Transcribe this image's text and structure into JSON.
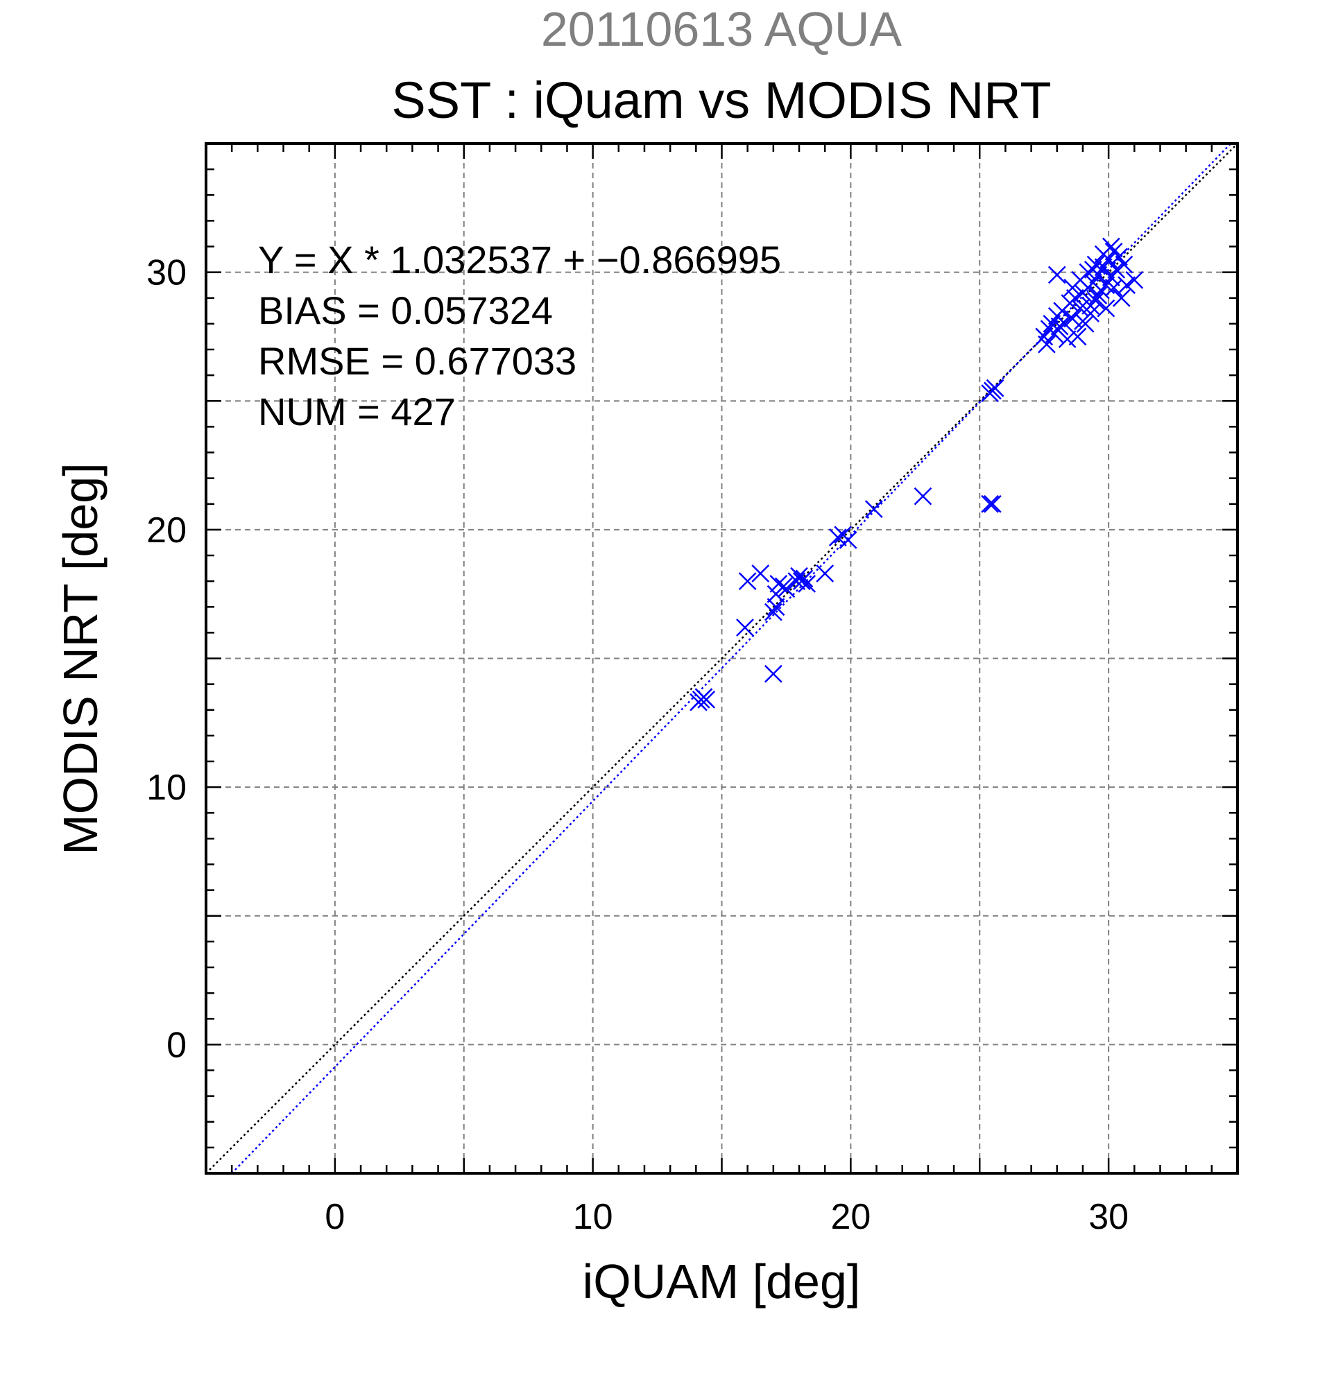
{
  "chart_data": {
    "type": "scatter",
    "title": "20110613 AQUA",
    "subtitle": "SST : iQuam vs MODIS NRT",
    "xlabel": "iQUAM [deg]",
    "ylabel": "MODIS NRT [deg]",
    "xlim": [
      -5,
      35
    ],
    "ylim": [
      -5,
      35
    ],
    "xticks": [
      0,
      10,
      20,
      30
    ],
    "yticks": [
      0,
      10,
      20,
      30
    ],
    "grid": true,
    "stats": [
      "Y = X * 1.032537 + −0.866995",
      "BIAS = 0.057324",
      "RMSE = 0.677033",
      "NUM = 427"
    ],
    "colors": {
      "points": "#0000ff",
      "identity_line": "#000000",
      "fit_line": "#0000ff"
    },
    "lines": [
      {
        "kind": "identity",
        "slope": 1,
        "intercept": 0,
        "style": "dotted"
      },
      {
        "kind": "regression",
        "slope": 1.032537,
        "intercept": -0.866995,
        "style": "dotted"
      }
    ],
    "points": [
      [
        14.2,
        13.4
      ],
      [
        14.4,
        13.4
      ],
      [
        14.3,
        13.5
      ],
      [
        14.1,
        13.3
      ],
      [
        15.9,
        16.2
      ],
      [
        16.0,
        18.0
      ],
      [
        16.5,
        18.3
      ],
      [
        17.0,
        14.4
      ],
      [
        17.0,
        16.8
      ],
      [
        17.1,
        17.0
      ],
      [
        17.1,
        17.5
      ],
      [
        17.2,
        17.9
      ],
      [
        17.4,
        17.8
      ],
      [
        17.5,
        17.7
      ],
      [
        17.9,
        18.0
      ],
      [
        18.0,
        18.2
      ],
      [
        18.1,
        18.0
      ],
      [
        18.2,
        18.1
      ],
      [
        18.3,
        17.9
      ],
      [
        19.0,
        18.3
      ],
      [
        19.5,
        19.7
      ],
      [
        19.7,
        19.8
      ],
      [
        19.9,
        19.6
      ],
      [
        20.9,
        20.8
      ],
      [
        22.8,
        21.3
      ],
      [
        25.4,
        21.0
      ],
      [
        25.5,
        21.0
      ],
      [
        25.5,
        25.4
      ],
      [
        25.6,
        25.5
      ],
      [
        25.4,
        25.3
      ],
      [
        27.5,
        27.5
      ],
      [
        27.6,
        27.2
      ],
      [
        27.7,
        27.8
      ],
      [
        27.8,
        28.0
      ],
      [
        27.9,
        27.6
      ],
      [
        28.0,
        28.3
      ],
      [
        28.1,
        27.9
      ],
      [
        28.2,
        28.5
      ],
      [
        28.3,
        28.0
      ],
      [
        28.4,
        27.4
      ],
      [
        28.5,
        28.8
      ],
      [
        28.6,
        28.2
      ],
      [
        28.7,
        29.0
      ],
      [
        28.8,
        27.5
      ],
      [
        28.9,
        28.6
      ],
      [
        29.0,
        29.2
      ],
      [
        29.1,
        28.0
      ],
      [
        29.2,
        29.4
      ],
      [
        29.3,
        28.4
      ],
      [
        29.4,
        29.6
      ],
      [
        29.5,
        28.9
      ],
      [
        29.6,
        29.9
      ],
      [
        29.7,
        29.3
      ],
      [
        29.8,
        30.2
      ],
      [
        29.9,
        29.5
      ],
      [
        30.0,
        30.5
      ],
      [
        30.1,
        29.8
      ],
      [
        30.2,
        30.8
      ],
      [
        30.3,
        30.1
      ],
      [
        30.4,
        30.6
      ],
      [
        30.5,
        29.0
      ],
      [
        30.6,
        30.3
      ],
      [
        30.7,
        29.5
      ],
      [
        31.0,
        29.7
      ],
      [
        28.0,
        29.9
      ],
      [
        28.6,
        29.4
      ],
      [
        28.9,
        29.7
      ],
      [
        29.2,
        30.0
      ],
      [
        29.5,
        30.3
      ],
      [
        29.8,
        30.7
      ],
      [
        30.1,
        31.0
      ],
      [
        29.0,
        28.1
      ],
      [
        29.3,
        28.7
      ],
      [
        29.6,
        29.1
      ],
      [
        29.9,
        28.6
      ],
      [
        30.2,
        29.4
      ],
      [
        29.4,
        30.1
      ]
    ]
  }
}
